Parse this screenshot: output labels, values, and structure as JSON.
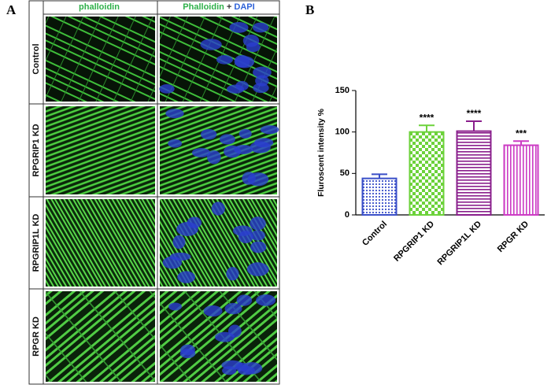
{
  "panel_labels": [
    "A",
    "B"
  ],
  "panel_a": {
    "col1": "phalloidin",
    "col2_parts": [
      "Phalloidin",
      "+",
      "DAPI"
    ],
    "rows": [
      "Control",
      "RPGRIP1 KD",
      "RPGRIP1L KD",
      "RPGR KD"
    ]
  },
  "chart_data": {
    "type": "bar",
    "ylabel": "Fluroscent intensity %",
    "categories": [
      "Control",
      "RPGRIP1 KD",
      "RPGRIP1L KD",
      "RPGR KD"
    ],
    "values": [
      44,
      100,
      101,
      84
    ],
    "errors": [
      5,
      8,
      12,
      5
    ],
    "annotations": [
      null,
      "****",
      "****",
      "***"
    ],
    "colors": [
      "#3a4fc8",
      "#6cd23a",
      "#8a1f8c",
      "#cc3cc4"
    ],
    "ylim": [
      0,
      150
    ],
    "yticks": [
      0,
      50,
      100,
      150
    ]
  }
}
